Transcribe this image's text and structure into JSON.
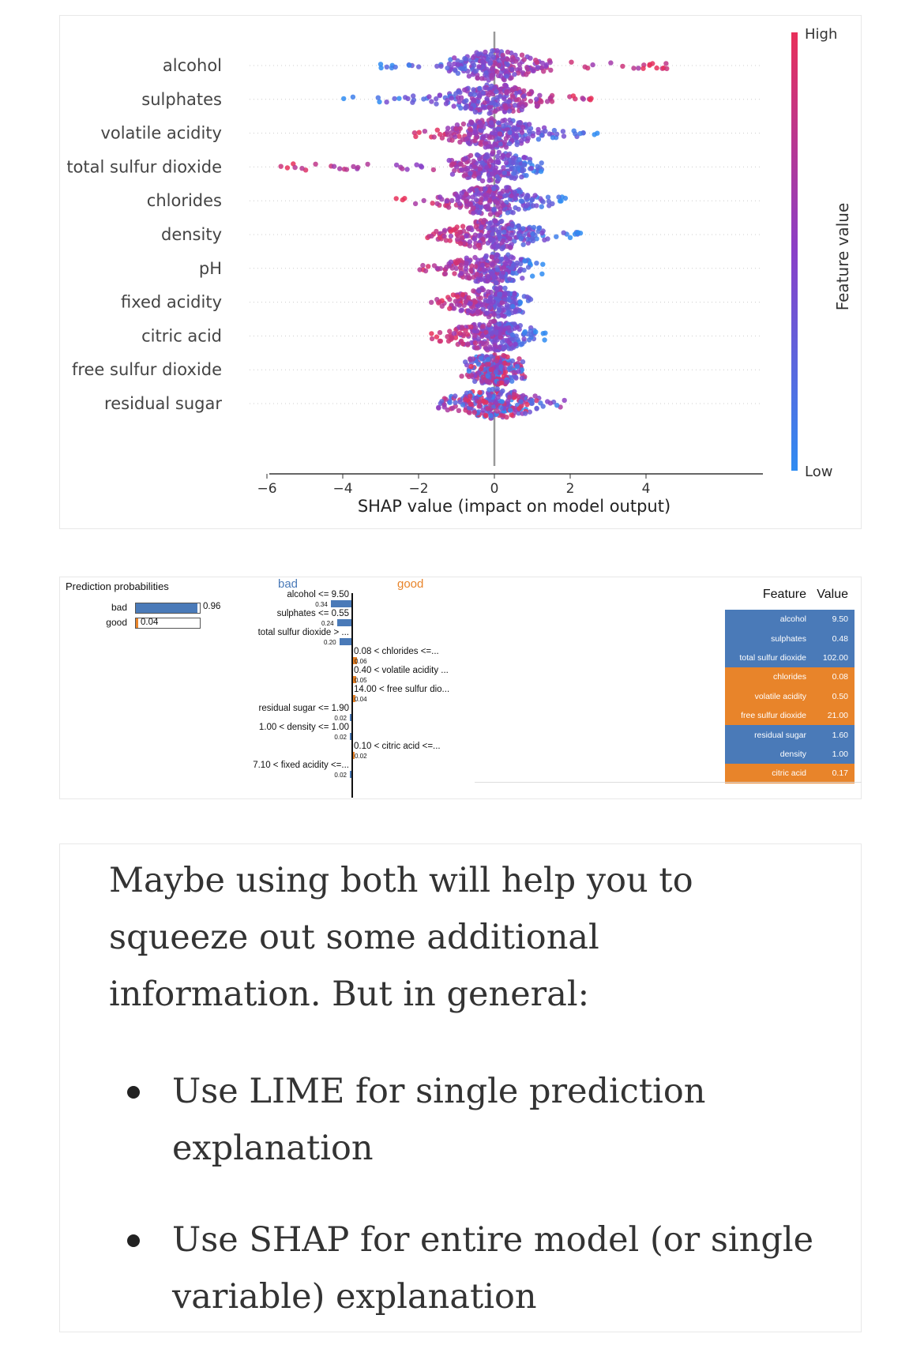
{
  "chart_data": [
    {
      "type": "scatter",
      "subtype": "beeswarm",
      "features": [
        "alcohol",
        "sulphates",
        "volatile acidity",
        "total sulfur dioxide",
        "chlorides",
        "density",
        "pH",
        "fixed acidity",
        "citric acid",
        "free sulfur dioxide",
        "residual sugar"
      ],
      "ranges": [
        [
          -3.0,
          4.9
        ],
        [
          -4.0,
          2.8
        ],
        [
          -2.2,
          2.8
        ],
        [
          -5.9,
          1.6
        ],
        [
          -2.6,
          2.0
        ],
        [
          -1.8,
          2.3
        ],
        [
          -2.3,
          1.3
        ],
        [
          -1.7,
          1.1
        ],
        [
          -1.7,
          1.4
        ],
        [
          -0.9,
          0.8
        ],
        [
          -1.5,
          1.9
        ]
      ],
      "xlabel": "SHAP value (impact on model output)",
      "xticks": [
        -6,
        -4,
        -2,
        0,
        2,
        4
      ],
      "xlim": [
        -6.4,
        5.5
      ],
      "colorbar": {
        "label": "Feature value",
        "high": "High",
        "low": "Low",
        "high_color": "#e8305a",
        "low_color": "#2f8cf2"
      }
    },
    {
      "type": "bar",
      "title": "Prediction probabilities",
      "categories": [
        "bad",
        "good"
      ],
      "values": [
        0.96,
        0.04
      ],
      "value_labels": [
        "0.96",
        "0.04"
      ],
      "colors": [
        "#4a7ab8",
        "#e8842a"
      ]
    },
    {
      "type": "bar",
      "orientation": "horizontal",
      "class_labels": {
        "negative": "bad",
        "positive": "good"
      },
      "categories": [
        "alcohol <= 9.50",
        "sulphates <= 0.55",
        "total sulfur dioxide > ...",
        "0.08 < chlorides <=...",
        "0.40 < volatile acidity ...",
        "14.00 < free sulfur dio...",
        "residual sugar <= 1.90",
        "1.00 < density <= 1.00",
        "0.10 < citric acid <=...",
        "7.10 < fixed acidity <=..."
      ],
      "values": [
        -0.34,
        -0.24,
        -0.2,
        0.06,
        0.05,
        0.04,
        -0.02,
        -0.02,
        0.02,
        -0.02
      ],
      "value_labels": [
        "0.34",
        "0.24",
        "0.20",
        "0.06",
        "0.05",
        "0.04",
        "0.02",
        "0.02",
        "0.02",
        "0.02"
      ],
      "colors": {
        "negative": "#4a7ab8",
        "positive": "#e8842a"
      }
    },
    {
      "type": "table",
      "columns": [
        "Feature",
        "Value"
      ],
      "rows": [
        {
          "feature": "alcohol",
          "value": "9.50",
          "class": "bad"
        },
        {
          "feature": "sulphates",
          "value": "0.48",
          "class": "bad"
        },
        {
          "feature": "total sulfur dioxide",
          "value": "102.00",
          "class": "bad"
        },
        {
          "feature": "chlorides",
          "value": "0.08",
          "class": "good"
        },
        {
          "feature": "volatile acidity",
          "value": "0.50",
          "class": "good"
        },
        {
          "feature": "free sulfur dioxide",
          "value": "21.00",
          "class": "good"
        },
        {
          "feature": "residual sugar",
          "value": "1.60",
          "class": "bad"
        },
        {
          "feature": "density",
          "value": "1.00",
          "class": "bad"
        },
        {
          "feature": "citric acid",
          "value": "0.17",
          "class": "good"
        }
      ]
    }
  ],
  "text": {
    "paragraph": "Maybe using both will help you to squeeze out some additional information. But in general:",
    "bullets": [
      "Use LIME for single prediction explanation",
      "Use SHAP for entire model (or single variable) explanation"
    ]
  }
}
